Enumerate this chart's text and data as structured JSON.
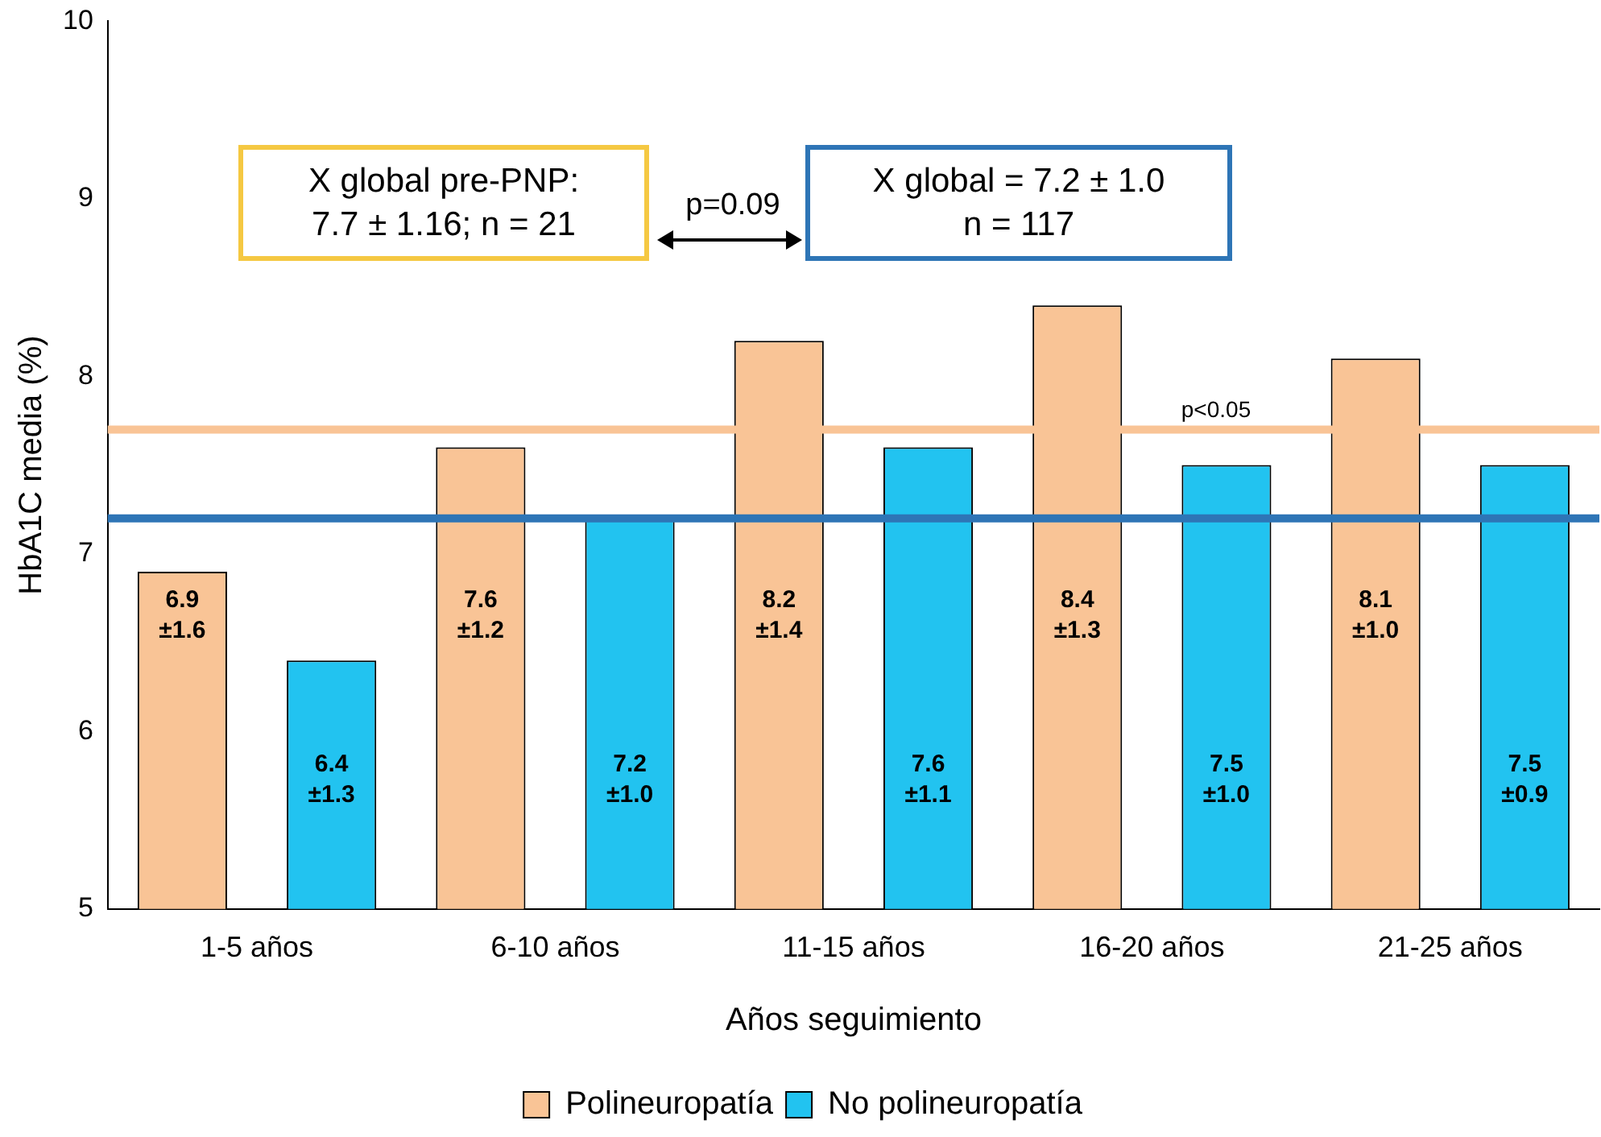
{
  "chart_data": {
    "type": "bar",
    "xlabel": "Años seguimiento",
    "ylabel": "HbA1C media (%)",
    "categories": [
      "1-5 años",
      "6-10 años",
      "11-15 años",
      "16-20 años",
      "21-25 años"
    ],
    "series": [
      {
        "name": "Polineuropatía",
        "color": "#f9c496",
        "values": [
          6.9,
          7.6,
          8.2,
          8.4,
          8.1
        ],
        "value_labels": [
          "6.9\n±1.6",
          "7.6\n±1.2",
          "8.2\n±1.4",
          "8.4\n±1.3",
          "8.1\n±1.0"
        ]
      },
      {
        "name": "No polineuropatía",
        "color": "#22c3f0",
        "values": [
          6.4,
          7.2,
          7.6,
          7.5,
          7.5
        ],
        "value_labels": [
          "6.4\n±1.3",
          "7.2\n±1.0",
          "7.6\n±1.1",
          "7.5\n±1.0",
          "7.5\n±0.9"
        ]
      }
    ],
    "ylim": [
      5,
      10
    ],
    "yticks": [
      5,
      6,
      7,
      8,
      9,
      10
    ],
    "grid": false,
    "legend": "bottom",
    "ref_lines": [
      {
        "axis": "y",
        "value": 7.7,
        "color": "#f9c496"
      },
      {
        "axis": "y",
        "value": 7.2,
        "color": "#2e75b6"
      }
    ],
    "annotations": [
      "X global pre-PNP:\n7.7 ± 1.16; n = 21",
      "X global = 7.2 ± 1.0\nn = 117",
      "p=0.09",
      "p<0.05"
    ]
  }
}
